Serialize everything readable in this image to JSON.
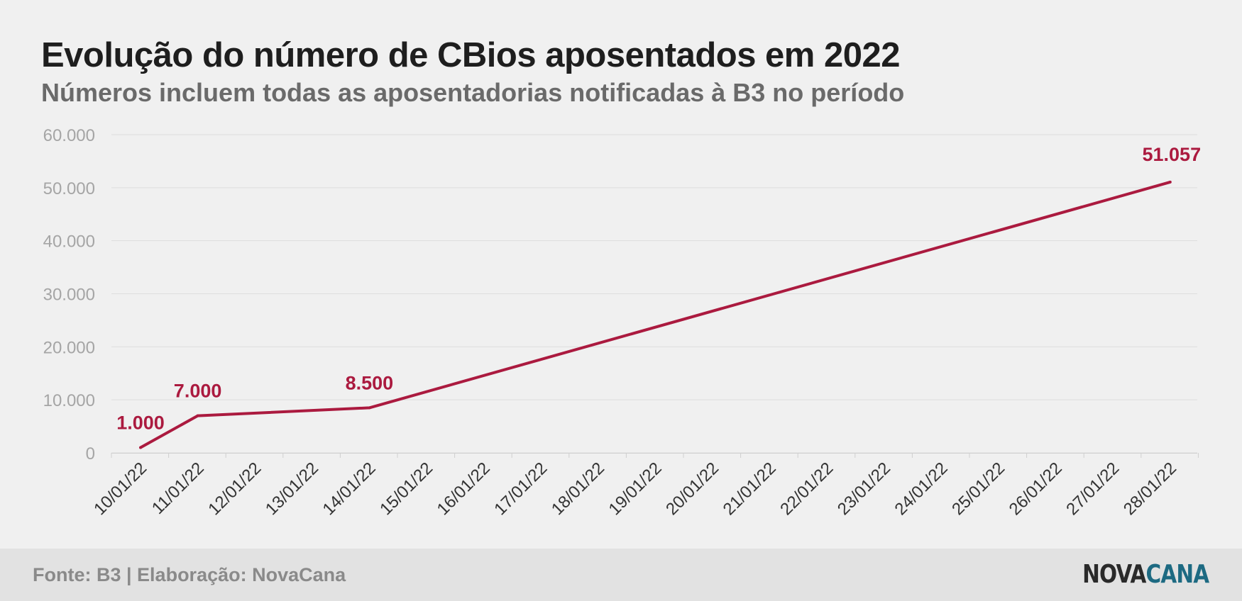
{
  "title": "Evolução do número de CBios aposentados em 2022",
  "subtitle": "Números incluem todas as aposentadorias notificadas à B3 no período",
  "footer": {
    "source": "Fonte: B3 | Elaboração: NovaCana",
    "logo_part1": "NOVA",
    "logo_part2": "CANA"
  },
  "colors": {
    "line": "#ab1a3f",
    "axis_text": "#a5a5a5",
    "tick_text": "#333333",
    "grid": "#dddddd",
    "logo_dark": "#2a2a2a",
    "logo_accent": "#1d6a82"
  },
  "chart_data": {
    "type": "line",
    "title": "Evolução do número de CBios aposentados em 2022",
    "subtitle": "Números incluem todas as aposentadorias notificadas à B3 no período",
    "categories": [
      "10/01/22",
      "11/01/22",
      "12/01/22",
      "13/01/22",
      "14/01/22",
      "15/01/22",
      "16/01/22",
      "17/01/22",
      "18/01/22",
      "19/01/22",
      "20/01/22",
      "21/01/22",
      "22/01/22",
      "23/01/22",
      "24/01/22",
      "25/01/22",
      "26/01/22",
      "27/01/22",
      "28/01/22"
    ],
    "series": [
      {
        "points": [
          {
            "x": "10/01/22",
            "y": 1000,
            "label": "1.000"
          },
          {
            "x": "11/01/22",
            "y": 7000,
            "label": "7.000"
          },
          {
            "x": "14/01/22",
            "y": 8500,
            "label": "8.500"
          },
          {
            "x": "28/01/22",
            "y": 51057,
            "label": "51.057"
          }
        ]
      }
    ],
    "yticks": [
      {
        "value": 0,
        "label": "0"
      },
      {
        "value": 10000,
        "label": "10.000"
      },
      {
        "value": 20000,
        "label": "20.000"
      },
      {
        "value": 30000,
        "label": "30.000"
      },
      {
        "value": 40000,
        "label": "40.000"
      },
      {
        "value": 50000,
        "label": "50.000"
      },
      {
        "value": 60000,
        "label": "60.000"
      }
    ],
    "ylim": [
      0,
      60000
    ],
    "grid": true,
    "legend": "none"
  }
}
